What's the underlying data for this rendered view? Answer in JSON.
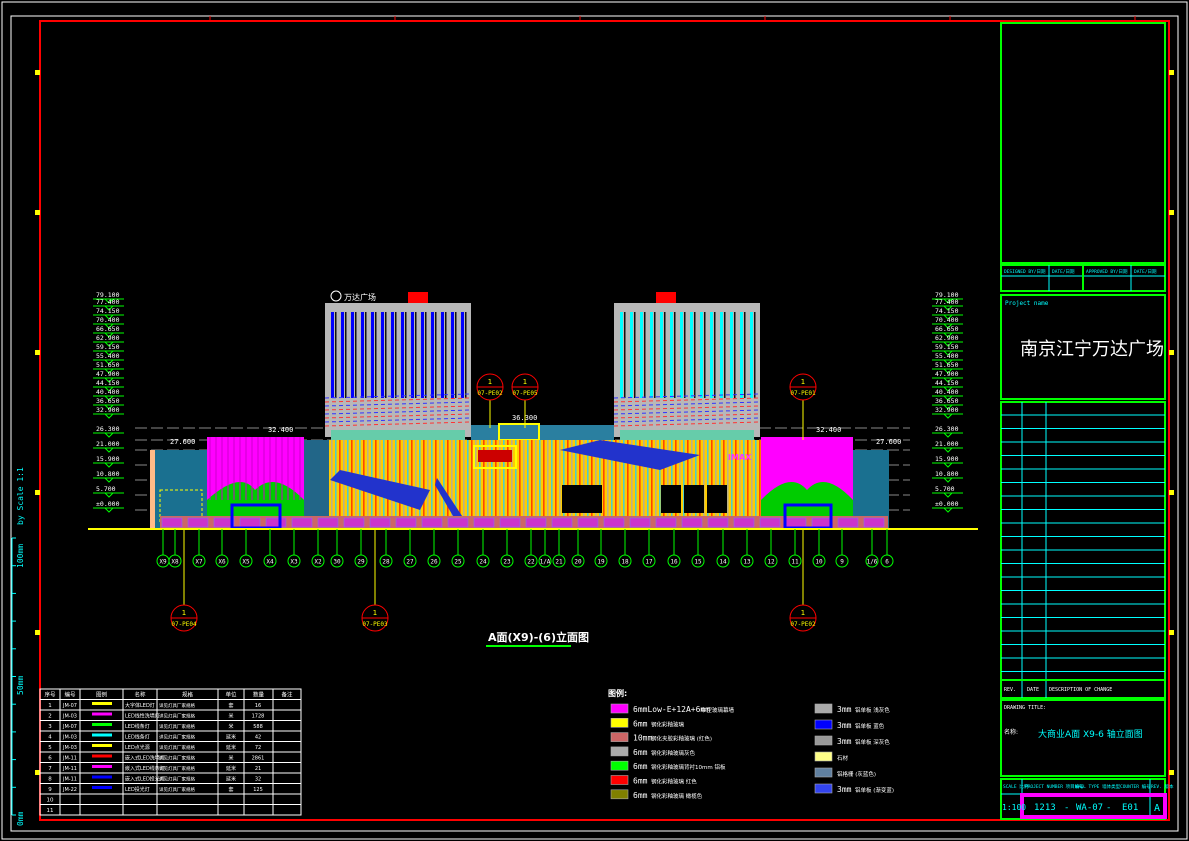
{
  "title_block": {
    "sign_headers": [
      "DESIGNED BY/日期",
      "DATE/日期",
      "APPROVED BY/日期",
      "DATE/日期"
    ],
    "project_name_label": "Project name",
    "project_name": "南京江宁万达广场",
    "rev_headers": [
      "REV.",
      "DATE",
      "DESCRIPTION OF CHANGE"
    ],
    "drawing_title_label": "DRAWING TITLE:",
    "drawing_name_label": "名称:",
    "drawing_title": "大商业A面 X9-6 轴立面图",
    "footer_headers": [
      "SCALE 比例",
      "PROJECT NUMBER 项目编号",
      "WALL TYPE 墙体类型",
      "COUNTER 编号",
      "REV. 版本"
    ],
    "scale": "1:100",
    "project_number": "1213",
    "wall_type": "WA-07",
    "counter": "E01",
    "rev": "A",
    "sep": "-"
  },
  "scale_bar": {
    "label": "by Scale 1:1",
    "ticks": [
      "0mm",
      "50mm",
      "100mm"
    ]
  },
  "view_title": "A面(X9)-(6)立面图",
  "elevations_left": [
    "79.100",
    "77.400",
    "74.150",
    "70.400",
    "66.650",
    "62.900",
    "59.150",
    "55.400",
    "51.650",
    "47.900",
    "44.150",
    "40.400",
    "36.650",
    "32.900",
    "26.300",
    "21.000",
    "15.900",
    "10.800",
    "5.700",
    "±0.000"
  ],
  "elevations_right": [
    "79.100",
    "77.400",
    "74.150",
    "70.400",
    "66.650",
    "62.900",
    "59.150",
    "55.400",
    "51.650",
    "47.900",
    "44.150",
    "40.400",
    "36.650",
    "32.900",
    "26.300",
    "21.000",
    "15.900",
    "10.800",
    "5.700",
    "±0.000"
  ],
  "level_marks": {
    "podium_left": "27.600",
    "podium_right": "27.600",
    "roof_left": "32.400",
    "roof_right": "32.400",
    "canopy": "36.300"
  },
  "grid_axes": [
    "X9",
    "X8",
    "X7",
    "X6",
    "X5",
    "X4",
    "X3",
    "X2",
    "30",
    "29",
    "28",
    "27",
    "26",
    "25",
    "24",
    "23",
    "22",
    "1/A",
    "21",
    "20",
    "19",
    "18",
    "17",
    "16",
    "15",
    "14",
    "13",
    "12",
    "11",
    "10",
    "9",
    "1/6",
    "6"
  ],
  "callouts": [
    {
      "num": "1",
      "ref": "07-PE02"
    },
    {
      "num": "1",
      "ref": "07-PE05"
    },
    {
      "num": "1",
      "ref": "07-PE01"
    },
    {
      "num": "1",
      "ref": "07-PE04"
    },
    {
      "num": "1",
      "ref": "07-PE03"
    },
    {
      "num": "1",
      "ref": "07-PE02"
    }
  ],
  "signage": {
    "imax": "IMAX",
    "tower_label": "万达广场"
  },
  "legend": {
    "title": "图例:",
    "items": [
      {
        "spec": "6mmLow-E+12A+6mm",
        "desc": "中空玻璃幕墙",
        "color": "#ff00ff"
      },
      {
        "spec": "6mm",
        "desc": "钢化彩釉玻璃",
        "color": "#ffff00"
      },
      {
        "spec": "10mm",
        "desc": "钢化夹胶彩釉玻璃 (红色)",
        "color": "#cc6666"
      },
      {
        "spec": "6mm",
        "desc": "钢化彩釉玻璃灰色",
        "color": "#aaaaaa"
      },
      {
        "spec": "6mm",
        "desc": "钢化彩釉玻璃背衬10mm 铝板",
        "color": "#00ff00"
      },
      {
        "spec": "6mm",
        "desc": "钢化彩釉玻璃 红色",
        "color": "#ff0000"
      },
      {
        "spec": "6mm",
        "desc": "钢化彩釉玻璃 橄榄色",
        "color": "#808000"
      },
      {
        "spec": "3mm",
        "desc": "铝单板 浅灰色",
        "color": "#aaaaaa"
      },
      {
        "spec": "3mm",
        "desc": "铝单板 蓝色",
        "color": "#0000ff"
      },
      {
        "spec": "3mm",
        "desc": "铝单板 深灰色",
        "color": "#999999"
      },
      {
        "spec": "",
        "desc": "石材",
        "color": "#ffff88"
      },
      {
        "spec": "",
        "desc": "铝格栅 (灰蓝色)",
        "color": "#6080a0"
      },
      {
        "spec": "3mm",
        "desc": "铝单板 (渐变蓝)",
        "color": "#3344ee"
      }
    ]
  },
  "schedule": {
    "headers": [
      "序号",
      "编号",
      "图例",
      "名称",
      "规格",
      "单位",
      "数量",
      "备注"
    ],
    "rows": [
      {
        "no": "1",
        "code": "JM-07",
        "name": "大字体LED灯",
        "spec": "详见灯具厂家规格",
        "unit": "套",
        "qty": "16",
        "color": "#ffff00"
      },
      {
        "no": "2",
        "code": "JM-03",
        "name": "LED线性洗墙灯",
        "spec": "详见灯具厂家规格",
        "unit": "米",
        "qty": "1728",
        "color": "#ff00ff"
      },
      {
        "no": "3",
        "code": "JM-07",
        "name": "LED线条灯",
        "spec": "详见灯具厂家规格",
        "unit": "米",
        "qty": "588",
        "color": "#00ff00"
      },
      {
        "no": "4",
        "code": "JM-03",
        "name": "LED线条灯",
        "spec": "详见灯具厂家规格",
        "unit": "延米",
        "qty": "42",
        "color": "#00ffff"
      },
      {
        "no": "5",
        "code": "JM-03",
        "name": "LED点光源",
        "spec": "详见灯具厂家规格",
        "unit": "延米",
        "qty": "72",
        "color": "#ffff00"
      },
      {
        "no": "6",
        "code": "JM-11",
        "name": "嵌入式LED洗墙灯",
        "spec": "详见灯具厂家规格",
        "unit": "米",
        "qty": "2861",
        "color": "#ff0000"
      },
      {
        "no": "7",
        "code": "JM-11",
        "name": "嵌入式LED线条灯",
        "spec": "详见灯具厂家规格",
        "unit": "延米",
        "qty": "21",
        "color": "#ff00ff"
      },
      {
        "no": "8",
        "code": "JM-11",
        "name": "嵌入式LED投光灯",
        "spec": "详见灯具厂家规格",
        "unit": "延米",
        "qty": "32",
        "color": "#0000ff"
      },
      {
        "no": "9",
        "code": "JM-22",
        "name": "LED投光灯",
        "spec": "详见灯具厂家规格",
        "unit": "套",
        "qty": "125",
        "color": "#0000ff"
      },
      {
        "no": "10",
        "code": "",
        "name": "",
        "spec": "",
        "unit": "",
        "qty": "",
        "color": ""
      },
      {
        "no": "11",
        "code": "",
        "name": "",
        "spec": "",
        "unit": "",
        "qty": "",
        "color": ""
      }
    ]
  }
}
